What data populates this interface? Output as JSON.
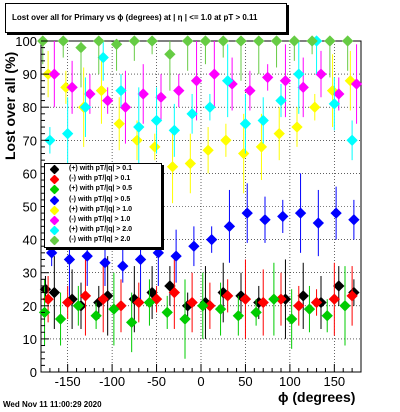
{
  "title": "Lost over all for Primary vs ϕ (degrees) at | η | <= 1.0 at pT > 0.11",
  "footer": "Wed Nov 11 11:00:29 2020",
  "chart_data": {
    "type": "scatter",
    "xlabel": "ϕ (degrees)",
    "ylabel": "Lost over all (%)",
    "xlim": [
      -180,
      180
    ],
    "ylim": [
      0,
      100
    ],
    "xticks": [
      -150,
      -100,
      -50,
      0,
      50,
      100,
      150
    ],
    "yticks": [
      0,
      10,
      20,
      30,
      40,
      50,
      60,
      70,
      80,
      90,
      100
    ],
    "grid": true,
    "legend_position": "left-middle",
    "series": [
      {
        "name": "(+) with pT/|q| > 0.1",
        "color": "#000000",
        "x": [
          -175,
          -165,
          -145,
          -135,
          -115,
          -105,
          -75,
          -55,
          -35,
          -15,
          5,
          25,
          45,
          65,
          95,
          115,
          135,
          155,
          172
        ],
        "y": [
          25,
          24,
          22,
          20,
          21,
          23,
          22,
          24,
          26,
          20,
          21,
          24,
          23,
          21,
          22,
          23,
          21,
          26,
          24
        ]
      },
      {
        "name": "(-) with pT/|q| > 0.1",
        "color": "#ff0000",
        "x": [
          -172,
          -150,
          -130,
          -110,
          -90,
          -70,
          -50,
          -30,
          -10,
          10,
          30,
          50,
          70,
          90,
          110,
          130,
          150,
          170
        ],
        "y": [
          22,
          21,
          23,
          22,
          20,
          21,
          22,
          24,
          21,
          20,
          23,
          22,
          21,
          22,
          20,
          21,
          22,
          23
        ]
      },
      {
        "name": "(+) with pT/|q| > 0.5",
        "color": "#00cc00",
        "x": [
          -176,
          -158,
          -138,
          -118,
          -98,
          -78,
          -58,
          -38,
          -18,
          2,
          22,
          42,
          62,
          82,
          102,
          122,
          142,
          162
        ],
        "y": [
          18,
          16,
          20,
          17,
          19,
          15,
          21,
          18,
          16,
          20,
          19,
          17,
          18,
          22,
          16,
          19,
          17,
          20
        ]
      },
      {
        "name": "(-) with pT/|q| > 0.5",
        "color": "#0000ff",
        "x": [
          -168,
          -148,
          -128,
          -108,
          -88,
          -68,
          -48,
          -28,
          -8,
          12,
          32,
          52,
          72,
          92,
          112,
          132,
          152,
          172
        ],
        "y": [
          36,
          34,
          35,
          33,
          32,
          34,
          36,
          35,
          38,
          40,
          44,
          48,
          46,
          47,
          48,
          45,
          48,
          46
        ]
      },
      {
        "name": "(+) with pT/|q| > 1.0",
        "color": "#ffff00",
        "x": [
          -172,
          -152,
          -132,
          -112,
          -92,
          -72,
          -52,
          -32,
          -12,
          8,
          28,
          48,
          68,
          88,
          108,
          128,
          148,
          168
        ],
        "y": [
          90,
          86,
          80,
          85,
          75,
          70,
          68,
          62,
          63,
          67,
          70,
          66,
          68,
          72,
          74,
          80,
          85,
          88
        ]
      },
      {
        "name": "(-) with pT/|q| > 1.0",
        "color": "#ff00ff",
        "x": [
          -165,
          -145,
          -125,
          -105,
          -85,
          -65,
          -45,
          -25,
          -5,
          15,
          35,
          55,
          75,
          95,
          115,
          135,
          155,
          175
        ],
        "y": [
          90,
          86,
          84,
          82,
          80,
          84,
          83,
          85,
          88,
          90,
          87,
          85,
          89,
          88,
          86,
          90,
          84,
          87
        ]
      },
      {
        "name": "(+) with pT/|q| > 2.0",
        "color": "#00ffff",
        "x": [
          -170,
          -150,
          -130,
          -110,
          -90,
          -70,
          -50,
          -30,
          -10,
          10,
          30,
          50,
          70,
          90,
          110,
          130,
          150,
          170
        ],
        "y": [
          70,
          72,
          80,
          95,
          85,
          74,
          76,
          73,
          78,
          80,
          88,
          75,
          76,
          82,
          90,
          100,
          81,
          70
        ]
      },
      {
        "name": "(-) with pT/|q| > 2.0",
        "color": "#66cc44",
        "x": [
          -178,
          -155,
          -135,
          -115,
          -95,
          -75,
          -55,
          -35,
          -15,
          5,
          25,
          45,
          65,
          85,
          105,
          125,
          145,
          165
        ],
        "y": [
          100,
          100,
          98,
          100,
          99,
          100,
          100,
          96,
          100,
          100,
          100,
          100,
          100,
          100,
          100,
          100,
          100,
          100
        ]
      }
    ]
  }
}
